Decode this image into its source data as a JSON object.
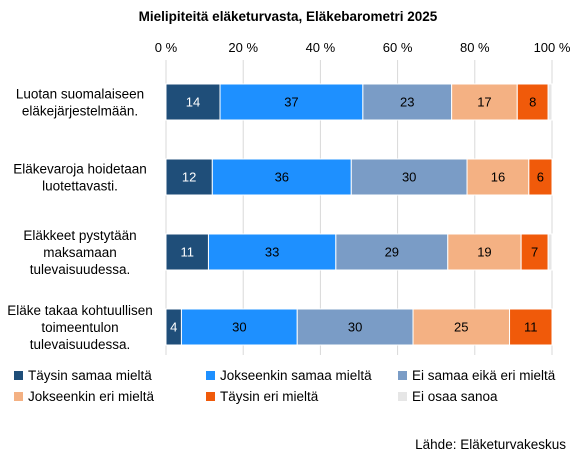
{
  "chart_data": {
    "type": "bar",
    "orientation": "horizontal",
    "stacked": true,
    "title": "Mielipiteitä eläketurvasta, Eläkebarometri 2025",
    "x_ticks": [
      "0 %",
      "20 %",
      "40 %",
      "60 %",
      "80 %",
      "100 %"
    ],
    "xlim": [
      0,
      100
    ],
    "grid": true,
    "legend_position": "bottom",
    "categories": [
      [
        "Luotan suomalaiseen",
        "eläkejärjestelmään."
      ],
      [
        "Eläkevaroja hoidetaan",
        "luotettavasti."
      ],
      [
        "Eläkkeet pystytään",
        "maksamaan",
        "tulevaisuudessa."
      ],
      [
        "Eläke takaa kohtuullisen",
        "toimeentulon",
        "tulevaisuudessa."
      ]
    ],
    "series": [
      {
        "name": "Täysin samaa mieltä",
        "color": "#1f4e79",
        "label_color": "#ffffff",
        "values": [
          14,
          12,
          11,
          4
        ]
      },
      {
        "name": "Jokseenkin samaa mieltä",
        "color": "#1e90ff",
        "label_color": "#000000",
        "values": [
          37,
          36,
          33,
          30
        ]
      },
      {
        "name": "Ei samaa eikä eri mieltä",
        "color": "#7a9cc6",
        "label_color": "#000000",
        "values": [
          23,
          30,
          29,
          30
        ]
      },
      {
        "name": "Jokseenkin eri mieltä",
        "color": "#f4b183",
        "label_color": "#000000",
        "values": [
          17,
          16,
          19,
          25
        ]
      },
      {
        "name": "Täysin eri mieltä",
        "color": "#f05a0a",
        "label_color": "#000000",
        "values": [
          8,
          6,
          7,
          11
        ]
      },
      {
        "name": "Ei osaa sanoa",
        "color": "#e6e6e6",
        "label_color": "#000000",
        "values": [
          1,
          0,
          1,
          0
        ]
      }
    ],
    "source": "Lähde: Eläketurvakeskus"
  }
}
